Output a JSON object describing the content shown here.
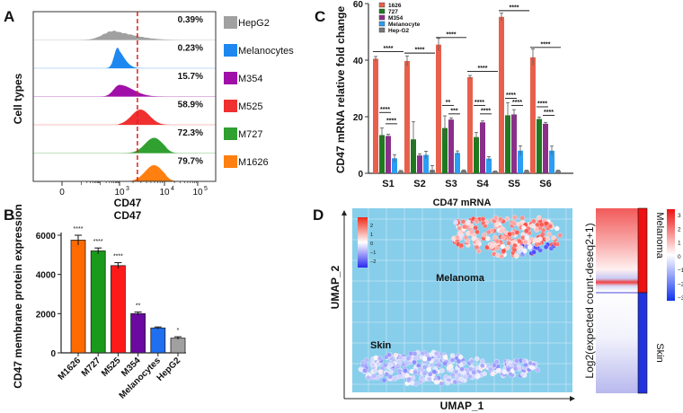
{
  "panels": {
    "a": "A",
    "b": "B",
    "c": "C",
    "d": "D"
  },
  "chart_data": [
    {
      "type": "histogram",
      "panel": "A",
      "xlabel": "CD47",
      "ylabel": "Cell types",
      "x_scale": "biexponential",
      "x_ticks": [
        "0",
        "10",
        "10",
        "10"
      ],
      "x_tick_exponents": [
        "",
        "3",
        "4",
        "5"
      ],
      "gate_threshold": 2500,
      "gate_color": "#e02020",
      "series": [
        {
          "name": "HepG2",
          "percent": "0.39%",
          "mode": 500,
          "color": "#a0a0a0"
        },
        {
          "name": "Melanocytes",
          "percent": "0.23%",
          "mode": 800,
          "color": "#1e88f0"
        },
        {
          "name": "M354",
          "percent": "15.7%",
          "mode": 1000,
          "color": "#a010a8"
        },
        {
          "name": "M525",
          "percent": "58.9%",
          "mode": 3000,
          "color": "#f03030"
        },
        {
          "name": "M727",
          "percent": "72.3%",
          "mode": 6000,
          "color": "#30a030"
        },
        {
          "name": "M1626",
          "percent": "79.7%",
          "mode": 6000,
          "color": "#ff8010"
        }
      ]
    },
    {
      "type": "bar",
      "panel": "B",
      "title": "CD47",
      "ylabel": "CD47 membrane protein expression",
      "ylim": [
        0,
        6000
      ],
      "y_ticks": [
        "0",
        "2000",
        "4000",
        "6000"
      ],
      "categories": [
        "M1626",
        "M727",
        "M525",
        "M354",
        "Melanocytes",
        "HepG2"
      ],
      "values": [
        5750,
        5200,
        4450,
        2000,
        1270,
        750
      ],
      "errors": [
        250,
        150,
        150,
        80,
        50,
        70
      ],
      "significance": [
        "****",
        "****",
        "****",
        "**",
        "",
        "*"
      ],
      "colors": [
        "#ff6a00",
        "#1a9a1a",
        "#ff1a1a",
        "#6a0aa0",
        "#1f6ff0",
        "#a0a0a0"
      ]
    },
    {
      "type": "bar",
      "panel": "C",
      "ylabel": "CD47 mRNA relative fold change",
      "ylim": [
        0,
        60
      ],
      "y_ticks": [
        "0",
        "20",
        "40",
        "60"
      ],
      "categories": [
        "S1",
        "S2",
        "S3",
        "S4",
        "S5",
        "S6"
      ],
      "series": [
        {
          "name": "1626",
          "color": "#e8604c",
          "values": [
            40.5,
            39.7,
            45.5,
            34,
            55.3,
            41
          ],
          "errors": [
            0.8,
            1.8,
            2.2,
            0.6,
            1.3,
            3
          ]
        },
        {
          "name": "727",
          "color": "#1f7a1f",
          "values": [
            13.5,
            12,
            16,
            12.8,
            20.5,
            19.2
          ],
          "errors": [
            2.5,
            6.2,
            4.3,
            1.6,
            4.5,
            0.7
          ]
        },
        {
          "name": "M354",
          "color": "#8b2f8b",
          "values": [
            13.2,
            6.3,
            19,
            18,
            20.8,
            17.5
          ],
          "errors": [
            0.6,
            0.6,
            0.6,
            0.5,
            1.7,
            0.5
          ]
        },
        {
          "name": "Melanocyte",
          "color": "#2a9df4",
          "values": [
            5.3,
            6.5,
            7.2,
            5.2,
            8,
            8
          ],
          "errors": [
            1.3,
            1.3,
            0.7,
            0.7,
            1.7,
            1.6
          ]
        },
        {
          "name": "Hep-G2",
          "color": "#777777",
          "values": [
            0.8,
            1.2,
            1,
            0.7,
            0.9,
            0.9
          ],
          "errors": [
            0.2,
            1.5,
            0.2,
            0.1,
            0.2,
            0.2
          ]
        }
      ],
      "annotations": [
        {
          "group": 0,
          "from": 0,
          "to": 4,
          "y": 43,
          "text": "****"
        },
        {
          "group": 0,
          "from": 1,
          "to": 2,
          "y": 21.5,
          "text": "****"
        },
        {
          "group": 0,
          "from": 2,
          "to": 3,
          "y": 17.5,
          "text": "****"
        },
        {
          "group": 1,
          "from": 0,
          "to": 4,
          "y": 42.5,
          "text": "****"
        },
        {
          "group": 2,
          "from": 0,
          "to": 4,
          "y": 48,
          "text": "****"
        },
        {
          "group": 2,
          "from": 1,
          "to": 2,
          "y": 24,
          "text": "**"
        },
        {
          "group": 2,
          "from": 2,
          "to": 3,
          "y": 21,
          "text": "***"
        },
        {
          "group": 3,
          "from": 0,
          "to": 4,
          "y": 36,
          "text": "****"
        },
        {
          "group": 3,
          "from": 1,
          "to": 2,
          "y": 24,
          "text": "****"
        },
        {
          "group": 3,
          "from": 2,
          "to": 3,
          "y": 21,
          "text": "****"
        },
        {
          "group": 4,
          "from": 0,
          "to": 4,
          "y": 57.5,
          "text": "****"
        },
        {
          "group": 4,
          "from": 1,
          "to": 2,
          "y": 26.5,
          "text": "****"
        },
        {
          "group": 4,
          "from": 2,
          "to": 3,
          "y": 24,
          "text": "****"
        },
        {
          "group": 5,
          "from": 0,
          "to": 4,
          "y": 44.5,
          "text": "****"
        },
        {
          "group": 5,
          "from": 1,
          "to": 2,
          "y": 23.5,
          "text": "****"
        },
        {
          "group": 5,
          "from": 2,
          "to": 3,
          "y": 20.5,
          "text": "****"
        }
      ]
    },
    {
      "type": "scatter",
      "panel": "D",
      "title": "CD47 mRNA",
      "xlabel": "UMAP_1",
      "ylabel": "UMAP_2",
      "background": "#87ceeb",
      "grid": true,
      "colorbar_ticks": [
        "2",
        "1",
        "0",
        "−1",
        "−2"
      ],
      "clusters": [
        {
          "name": "Melanoma",
          "expression": "high"
        },
        {
          "name": "Skin",
          "expression": "low"
        }
      ]
    },
    {
      "type": "heatmap",
      "panel": "D",
      "ylabel": "Log2(expected count-deseq2+1)",
      "groups": [
        {
          "name": "Melanoma",
          "color": "#ee1111"
        },
        {
          "name": "Skin",
          "color": "#2233dd"
        }
      ],
      "colorbar_ticks": [
        "3",
        "2",
        "1",
        "0",
        "−1",
        "−2",
        "−3"
      ],
      "colorbar_range": [
        -3,
        3
      ]
    }
  ]
}
